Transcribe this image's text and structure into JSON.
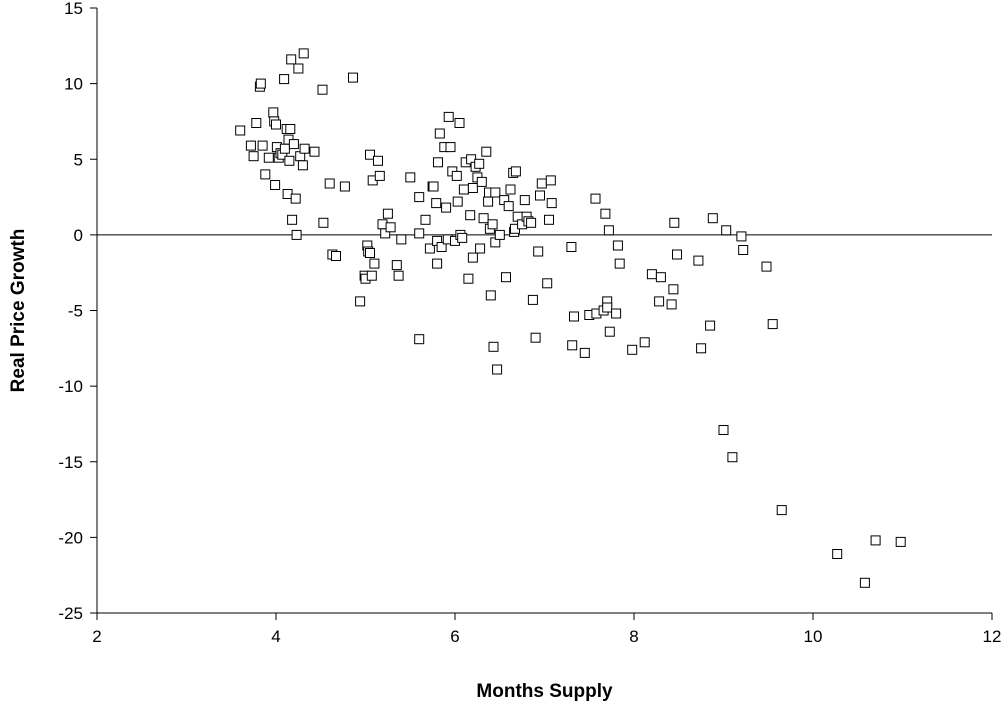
{
  "chart_data": {
    "type": "scatter",
    "title": "",
    "xlabel": "Months Supply",
    "ylabel": "Real Price Growth",
    "xlim": [
      2,
      12
    ],
    "ylim": [
      -25,
      15
    ],
    "x_ticks": [
      "2",
      "4",
      "6",
      "8",
      "10",
      "12"
    ],
    "y_ticks": [
      "15",
      "10",
      "5",
      "0",
      "-5",
      "-10",
      "-15",
      "-20",
      "-25"
    ],
    "reference_line_y": 0,
    "grid": false,
    "legend": "none",
    "marker": "open-square",
    "points": [
      [
        3.6,
        6.9
      ],
      [
        3.72,
        5.9
      ],
      [
        3.75,
        5.2
      ],
      [
        3.78,
        7.4
      ],
      [
        3.82,
        9.8
      ],
      [
        3.83,
        10.0
      ],
      [
        3.85,
        5.9
      ],
      [
        3.88,
        4.0
      ],
      [
        3.92,
        5.1
      ],
      [
        3.97,
        8.1
      ],
      [
        3.98,
        7.5
      ],
      [
        3.99,
        3.3
      ],
      [
        4.0,
        7.3
      ],
      [
        4.01,
        5.8
      ],
      [
        4.03,
        5.1
      ],
      [
        4.05,
        5.4
      ],
      [
        4.07,
        5.3
      ],
      [
        4.09,
        10.3
      ],
      [
        4.1,
        5.7
      ],
      [
        4.12,
        7.0
      ],
      [
        4.13,
        2.7
      ],
      [
        4.14,
        6.3
      ],
      [
        4.15,
        4.9
      ],
      [
        4.16,
        7.0
      ],
      [
        4.17,
        11.6
      ],
      [
        4.18,
        1.0
      ],
      [
        4.2,
        6.0
      ],
      [
        4.22,
        2.4
      ],
      [
        4.23,
        0.0
      ],
      [
        4.25,
        11.0
      ],
      [
        4.27,
        5.2
      ],
      [
        4.3,
        4.6
      ],
      [
        4.31,
        12.0
      ],
      [
        4.32,
        5.7
      ],
      [
        4.43,
        5.5
      ],
      [
        4.52,
        9.6
      ],
      [
        4.53,
        0.8
      ],
      [
        4.6,
        3.4
      ],
      [
        4.63,
        -1.3
      ],
      [
        4.67,
        -1.4
      ],
      [
        4.77,
        3.2
      ],
      [
        4.86,
        10.4
      ],
      [
        4.94,
        -4.4
      ],
      [
        4.99,
        -2.7
      ],
      [
        5.0,
        -2.9
      ],
      [
        5.02,
        -0.7
      ],
      [
        5.03,
        -1.1
      ],
      [
        5.05,
        -1.2
      ],
      [
        5.05,
        5.3
      ],
      [
        5.07,
        -2.7
      ],
      [
        5.08,
        3.6
      ],
      [
        5.1,
        -1.9
      ],
      [
        5.14,
        4.9
      ],
      [
        5.16,
        3.9
      ],
      [
        5.19,
        0.7
      ],
      [
        5.22,
        0.1
      ],
      [
        5.25,
        1.4
      ],
      [
        5.28,
        0.5
      ],
      [
        5.35,
        -2.0
      ],
      [
        5.37,
        -2.7
      ],
      [
        5.4,
        -0.3
      ],
      [
        5.5,
        3.8
      ],
      [
        5.6,
        -6.9
      ],
      [
        5.6,
        2.5
      ],
      [
        5.6,
        0.1
      ],
      [
        5.67,
        1.0
      ],
      [
        5.72,
        -0.9
      ],
      [
        5.75,
        3.2
      ],
      [
        5.76,
        3.2
      ],
      [
        5.79,
        2.1
      ],
      [
        5.8,
        -1.9
      ],
      [
        5.8,
        -0.4
      ],
      [
        5.81,
        4.8
      ],
      [
        5.83,
        6.7
      ],
      [
        5.85,
        -0.8
      ],
      [
        5.88,
        5.8
      ],
      [
        5.9,
        1.8
      ],
      [
        5.92,
        -0.3
      ],
      [
        5.93,
        7.8
      ],
      [
        5.95,
        5.8
      ],
      [
        5.97,
        4.2
      ],
      [
        6.0,
        -0.4
      ],
      [
        6.02,
        3.9
      ],
      [
        6.03,
        2.2
      ],
      [
        6.05,
        7.4
      ],
      [
        6.06,
        0.0
      ],
      [
        6.08,
        -0.2
      ],
      [
        6.1,
        3.0
      ],
      [
        6.12,
        4.8
      ],
      [
        6.15,
        -2.9
      ],
      [
        6.17,
        1.3
      ],
      [
        6.18,
        5.0
      ],
      [
        6.2,
        -1.5
      ],
      [
        6.2,
        3.1
      ],
      [
        6.23,
        4.5
      ],
      [
        6.25,
        3.8
      ],
      [
        6.27,
        4.7
      ],
      [
        6.28,
        -0.9
      ],
      [
        6.3,
        3.5
      ],
      [
        6.32,
        1.1
      ],
      [
        6.35,
        5.5
      ],
      [
        6.37,
        2.2
      ],
      [
        6.38,
        2.8
      ],
      [
        6.39,
        0.4
      ],
      [
        6.4,
        -4.0
      ],
      [
        6.42,
        0.7
      ],
      [
        6.43,
        -7.4
      ],
      [
        6.45,
        -0.5
      ],
      [
        6.45,
        2.8
      ],
      [
        6.47,
        -8.9
      ],
      [
        6.5,
        0.0
      ],
      [
        6.55,
        2.3
      ],
      [
        6.57,
        -2.8
      ],
      [
        6.6,
        1.9
      ],
      [
        6.62,
        3.0
      ],
      [
        6.65,
        4.1
      ],
      [
        6.66,
        0.2
      ],
      [
        6.67,
        0.4
      ],
      [
        6.68,
        4.2
      ],
      [
        6.7,
        1.2
      ],
      [
        6.75,
        0.7
      ],
      [
        6.78,
        2.3
      ],
      [
        6.8,
        1.2
      ],
      [
        6.82,
        0.9
      ],
      [
        6.85,
        0.8
      ],
      [
        6.87,
        -4.3
      ],
      [
        6.9,
        -6.8
      ],
      [
        6.93,
        -1.1
      ],
      [
        6.95,
        2.6
      ],
      [
        6.97,
        3.4
      ],
      [
        7.03,
        -3.2
      ],
      [
        7.05,
        1.0
      ],
      [
        7.07,
        3.6
      ],
      [
        7.08,
        2.1
      ],
      [
        7.3,
        -0.8
      ],
      [
        7.31,
        -7.3
      ],
      [
        7.33,
        -5.4
      ],
      [
        7.45,
        -7.8
      ],
      [
        7.5,
        -5.3
      ],
      [
        7.57,
        2.4
      ],
      [
        7.58,
        -5.2
      ],
      [
        7.66,
        -5.0
      ],
      [
        7.68,
        1.4
      ],
      [
        7.7,
        -4.4
      ],
      [
        7.7,
        -4.8
      ],
      [
        7.72,
        0.3
      ],
      [
        7.73,
        -6.4
      ],
      [
        7.8,
        -5.2
      ],
      [
        7.82,
        -0.7
      ],
      [
        7.84,
        -1.9
      ],
      [
        7.98,
        -7.6
      ],
      [
        8.12,
        -7.1
      ],
      [
        8.2,
        -2.6
      ],
      [
        8.28,
        -4.4
      ],
      [
        8.3,
        -2.8
      ],
      [
        8.42,
        -4.6
      ],
      [
        8.44,
        -3.6
      ],
      [
        8.45,
        0.8
      ],
      [
        8.48,
        -1.3
      ],
      [
        8.72,
        -1.7
      ],
      [
        8.75,
        -7.5
      ],
      [
        8.85,
        -6.0
      ],
      [
        8.88,
        1.1
      ],
      [
        9.0,
        -12.9
      ],
      [
        9.03,
        0.3
      ],
      [
        9.1,
        -14.7
      ],
      [
        9.2,
        -0.1
      ],
      [
        9.22,
        -1.0
      ],
      [
        9.48,
        -2.1
      ],
      [
        9.55,
        -5.9
      ],
      [
        9.65,
        -18.2
      ],
      [
        10.27,
        -21.1
      ],
      [
        10.58,
        -23.0
      ],
      [
        10.7,
        -20.2
      ],
      [
        10.98,
        -20.3
      ]
    ]
  }
}
